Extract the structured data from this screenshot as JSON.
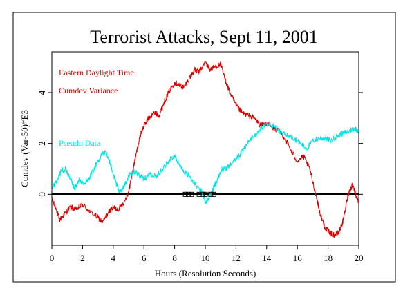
{
  "chart_data": {
    "type": "line",
    "title": "Terrorist Attacks, Sept 11, 2001",
    "xlabel": "Hours (Resolution Seconds)",
    "ylabel": "Cumdev (Var-50)*E3",
    "xlim": [
      0,
      20
    ],
    "ylim": [
      -2,
      5.6
    ],
    "x_ticks": [
      0,
      2,
      4,
      6,
      8,
      10,
      12,
      14,
      16,
      18,
      20
    ],
    "x_tick_labels": [
      "0",
      "2",
      "4",
      "6",
      "8",
      "10",
      "12",
      "14",
      "16",
      "18",
      "20"
    ],
    "y_ticks": [
      0,
      2,
      4
    ],
    "y_tick_labels": [
      "0",
      "2",
      "4"
    ],
    "grid": false,
    "zero_line": true,
    "annotations": [
      {
        "text": "Eastern Daylight Time",
        "color": "#dd0000"
      },
      {
        "text": "Cumdev Variance",
        "color": "#dd0000"
      },
      {
        "text": "Pseudo Data",
        "color": "#00e5e5"
      }
    ],
    "event_markers": {
      "symbol": "square",
      "x": [
        8.7,
        8.9,
        9.1,
        9.6,
        9.8,
        10.0,
        10.35,
        10.55
      ],
      "y": 0
    },
    "series": [
      {
        "color": "#dd0000",
        "x": [
          0,
          0.3,
          0.5,
          0.8,
          1.2,
          1.6,
          2.0,
          2.5,
          3.0,
          3.3,
          3.7,
          4.0,
          4.3,
          4.7,
          5.0,
          5.2,
          5.5,
          5.8,
          6.0,
          6.3,
          6.7,
          7.0,
          7.3,
          7.6,
          8.0,
          8.3,
          8.6,
          9.0,
          9.3,
          9.6,
          10.0,
          10.3,
          10.6,
          11.0,
          11.3,
          11.6,
          12.0,
          12.4,
          12.8,
          13.2,
          13.6,
          14.0,
          14.4,
          14.8,
          15.2,
          15.6,
          16.0,
          16.4,
          16.8,
          17.2,
          17.5,
          17.8,
          18.1,
          18.4,
          18.7,
          19.0,
          19.3,
          19.6,
          19.8,
          20.0
        ],
        "y": [
          -0.2,
          -0.6,
          -1.0,
          -0.8,
          -0.5,
          -0.6,
          -0.4,
          -0.7,
          -0.9,
          -1.1,
          -0.7,
          -0.5,
          -0.6,
          -0.3,
          0.1,
          0.7,
          1.6,
          2.4,
          2.7,
          3.0,
          3.2,
          3.1,
          3.6,
          4.0,
          4.4,
          4.3,
          4.2,
          4.6,
          4.9,
          4.8,
          5.2,
          4.9,
          5.0,
          5.1,
          4.5,
          4.0,
          3.5,
          3.2,
          3.1,
          3.0,
          2.7,
          2.8,
          2.6,
          2.5,
          2.2,
          1.7,
          1.3,
          1.5,
          1.0,
          0.0,
          -0.8,
          -1.3,
          -1.5,
          -1.6,
          -1.5,
          -1.0,
          0.0,
          0.4,
          0.0,
          -0.3
        ]
      },
      {
        "color": "#00e5e5",
        "x": [
          0,
          0.3,
          0.6,
          0.9,
          1.2,
          1.5,
          1.8,
          2.1,
          2.5,
          2.9,
          3.2,
          3.5,
          3.8,
          4.1,
          4.4,
          4.7,
          5.0,
          5.3,
          5.6,
          6.0,
          6.4,
          6.8,
          7.2,
          7.6,
          8.0,
          8.3,
          8.6,
          9.0,
          9.4,
          9.8,
          10.0,
          10.2,
          10.5,
          10.8,
          11.1,
          11.4,
          11.8,
          12.2,
          12.6,
          13.0,
          13.4,
          13.8,
          14.2,
          14.6,
          15.0,
          15.4,
          15.8,
          16.2,
          16.6,
          17.0,
          17.4,
          17.8,
          18.2,
          18.6,
          19.0,
          19.4,
          19.7,
          20.0
        ],
        "y": [
          0.2,
          0.5,
          0.9,
          1.0,
          0.6,
          0.2,
          0.6,
          0.4,
          0.7,
          1.2,
          1.5,
          1.7,
          1.2,
          0.6,
          0.1,
          0.3,
          0.7,
          0.9,
          0.8,
          0.6,
          0.8,
          0.7,
          1.0,
          1.3,
          1.5,
          1.2,
          0.9,
          0.7,
          0.3,
          0.1,
          -0.3,
          -0.2,
          0.2,
          0.6,
          1.0,
          1.0,
          1.3,
          1.5,
          1.9,
          2.2,
          2.4,
          2.7,
          2.8,
          2.6,
          2.4,
          2.3,
          2.2,
          2.0,
          1.8,
          2.1,
          2.2,
          2.2,
          2.1,
          2.3,
          2.4,
          2.5,
          2.6,
          2.5
        ]
      }
    ]
  }
}
